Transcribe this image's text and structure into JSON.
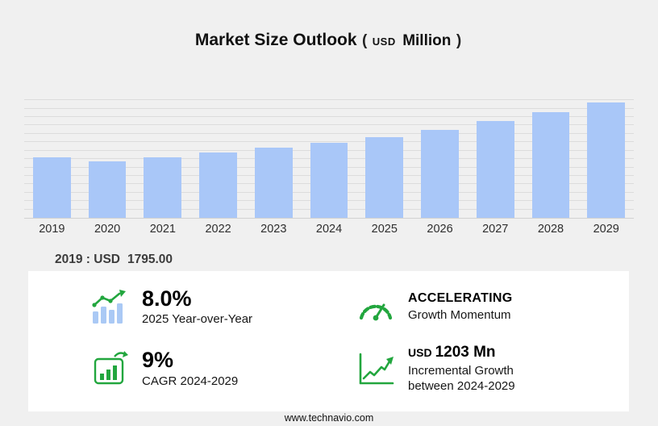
{
  "title": {
    "main": "Market Size Outlook",
    "paren_open": "(",
    "currency": "USD",
    "unit": "Million",
    "paren_close": ")"
  },
  "chart_data": {
    "type": "bar",
    "title": "Market Size Outlook (USD Million)",
    "categories": [
      "2019",
      "2020",
      "2021",
      "2022",
      "2023",
      "2024",
      "2025",
      "2026",
      "2027",
      "2028",
      "2029"
    ],
    "values": [
      1795,
      1680,
      1790,
      1940,
      2090,
      2230,
      2408,
      2620,
      2870,
      3140,
      3433
    ],
    "ylabel": "USD Million",
    "ylim": [
      0,
      3600
    ],
    "grid_step": 250,
    "grid": true,
    "legend": "none",
    "bar_color": "#a9c7f8"
  },
  "annotation": {
    "label": "2019 : USD",
    "value": "1795.00"
  },
  "stats": [
    {
      "value": "8.0%",
      "label": "2025 Year-over-Year",
      "icon": "growth-bars-icon"
    },
    {
      "value": "ACCELERATING",
      "label": "Growth Momentum",
      "icon": "speedometer-icon"
    },
    {
      "value": "9%",
      "label": "CAGR 2024-2029",
      "icon": "chart-box-icon"
    },
    {
      "value_prefix": "USD",
      "value": "1203 Mn",
      "label": "Incremental Growth between 2024-2029",
      "icon": "step-growth-icon"
    }
  ],
  "footer": {
    "website": "www.technavio.com"
  },
  "colors": {
    "background": "#f0f0f0",
    "panel": "#ffffff",
    "bar": "#a9c7f8",
    "accent_green": "#22a63e",
    "text_dark": "#111111"
  }
}
